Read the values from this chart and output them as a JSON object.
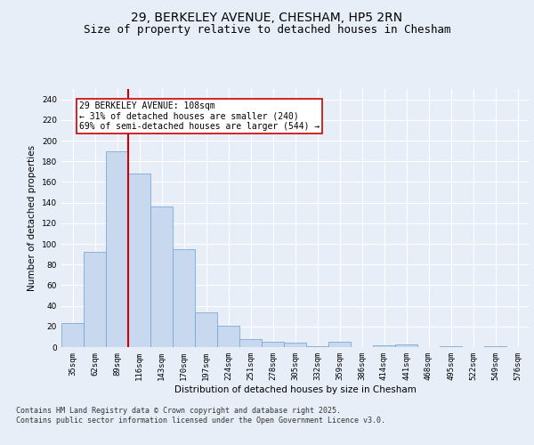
{
  "title1": "29, BERKELEY AVENUE, CHESHAM, HP5 2RN",
  "title2": "Size of property relative to detached houses in Chesham",
  "xlabel": "Distribution of detached houses by size in Chesham",
  "ylabel": "Number of detached properties",
  "categories": [
    "35sqm",
    "62sqm",
    "89sqm",
    "116sqm",
    "143sqm",
    "170sqm",
    "197sqm",
    "224sqm",
    "251sqm",
    "278sqm",
    "305sqm",
    "332sqm",
    "359sqm",
    "386sqm",
    "414sqm",
    "441sqm",
    "468sqm",
    "495sqm",
    "522sqm",
    "549sqm",
    "576sqm"
  ],
  "values": [
    23,
    92,
    190,
    168,
    136,
    95,
    34,
    21,
    8,
    5,
    4,
    1,
    5,
    0,
    2,
    3,
    0,
    1,
    0,
    1,
    0
  ],
  "bar_color": "#c8d8ee",
  "bar_edge_color": "#7aaad4",
  "vline_x": 2.5,
  "vline_color": "#cc0000",
  "annotation_text": "29 BERKELEY AVENUE: 108sqm\n← 31% of detached houses are smaller (240)\n69% of semi-detached houses are larger (544) →",
  "annotation_box_color": "#cc0000",
  "annotation_facecolor": "white",
  "ylim": [
    0,
    250
  ],
  "yticks": [
    0,
    20,
    40,
    60,
    80,
    100,
    120,
    140,
    160,
    180,
    200,
    220,
    240
  ],
  "bg_color": "#e8eef8",
  "plot_bg_color": "#e8eef8",
  "footer": "Contains HM Land Registry data © Crown copyright and database right 2025.\nContains public sector information licensed under the Open Government Licence v3.0.",
  "title_fontsize": 10,
  "subtitle_fontsize": 9,
  "axis_label_fontsize": 7.5,
  "tick_fontsize": 6.5,
  "footer_fontsize": 6,
  "annot_fontsize": 7
}
